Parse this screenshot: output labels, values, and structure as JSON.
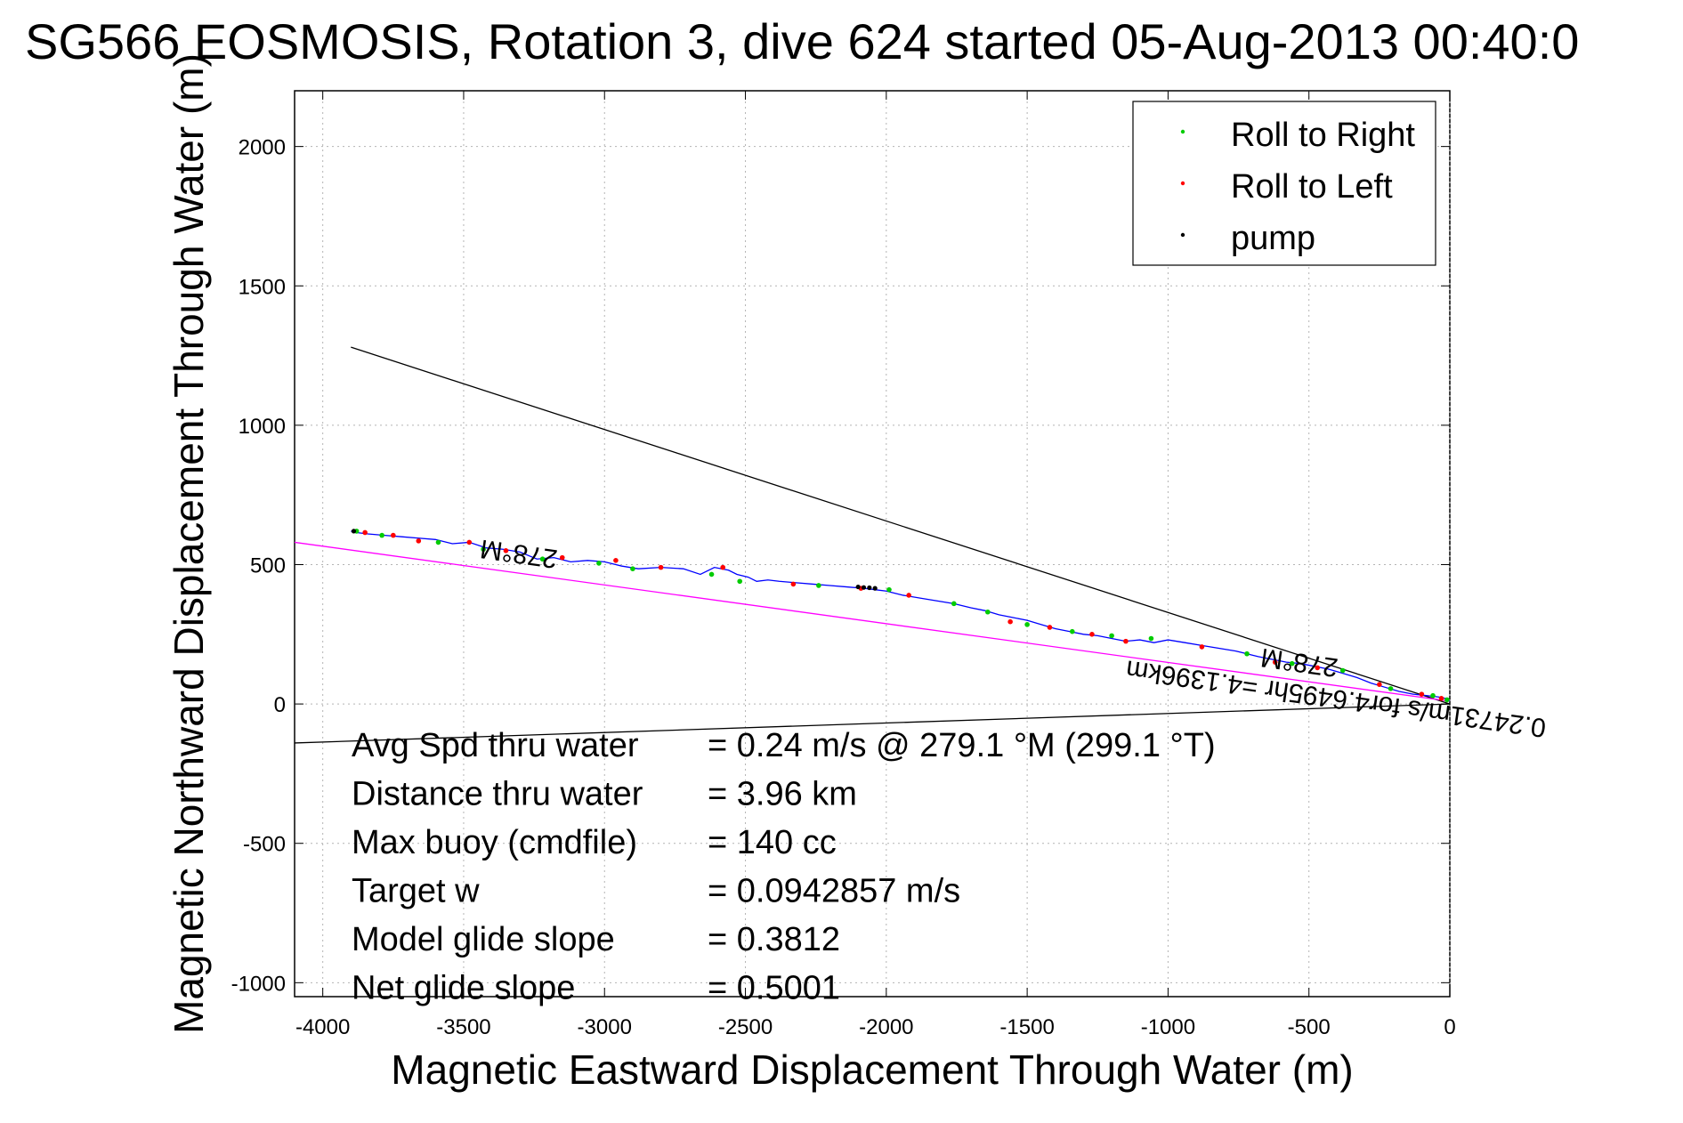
{
  "chart_data": {
    "type": "line",
    "title": "SG566 EOSMOSIS, Rotation 3, dive 624 started 05-Aug-2013 00:40:0",
    "xlabel": "Magnetic Eastward Displacement Through Water (m)",
    "ylabel": "Magnetic Northward Displacement Through Water (m)",
    "xlim": [
      -4100,
      0
    ],
    "ylim": [
      -1050,
      2200
    ],
    "xticks": [
      -4000,
      -3500,
      -3000,
      -2500,
      -2000,
      -1500,
      -1000,
      -500,
      0
    ],
    "yticks": [
      -1000,
      -500,
      0,
      500,
      1000,
      1500,
      2000
    ],
    "grid": true,
    "legend_position": "top-right",
    "legend": [
      {
        "label": "Roll to Right",
        "color": "#00cc00"
      },
      {
        "label": "Roll to Left",
        "color": "#ff0000"
      },
      {
        "label": "pump",
        "color": "#000000"
      }
    ],
    "track": {
      "color": "#0000ff",
      "x": [
        0,
        -15,
        -40,
        -80,
        -130,
        -180,
        -230,
        -280,
        -330,
        -380,
        -430,
        -480,
        -530,
        -580,
        -630,
        -680,
        -720,
        -760,
        -820,
        -880,
        -940,
        -1000,
        -1050,
        -1100,
        -1150,
        -1200,
        -1250,
        -1300,
        -1350,
        -1400,
        -1450,
        -1500,
        -1550,
        -1600,
        -1650,
        -1700,
        -1760,
        -1820,
        -1880,
        -1940,
        -2000,
        -2040,
        -2080,
        -2140,
        -2200,
        -2260,
        -2320,
        -2380,
        -2420,
        -2460,
        -2490,
        -2530,
        -2560,
        -2610,
        -2660,
        -2720,
        -2800,
        -2880,
        -2940,
        -3000,
        -3060,
        -3120,
        -3180,
        -3240,
        -3300,
        -3360,
        -3420,
        -3480,
        -3540,
        -3600,
        -3660,
        -3720,
        -3780,
        -3840,
        -3880,
        -3900
      ],
      "y": [
        10,
        20,
        25,
        30,
        35,
        45,
        60,
        75,
        95,
        110,
        125,
        135,
        145,
        150,
        160,
        170,
        180,
        190,
        200,
        210,
        220,
        230,
        220,
        230,
        225,
        235,
        245,
        250,
        260,
        270,
        285,
        300,
        310,
        320,
        335,
        345,
        360,
        370,
        380,
        390,
        405,
        410,
        415,
        420,
        425,
        430,
        435,
        440,
        445,
        440,
        455,
        465,
        480,
        490,
        465,
        485,
        490,
        485,
        495,
        510,
        515,
        510,
        525,
        520,
        545,
        555,
        560,
        580,
        575,
        590,
        595,
        600,
        605,
        610,
        615,
        620
      ]
    },
    "roll_right_points": {
      "color": "#00cc00",
      "x": [
        -10,
        -60,
        -210,
        -380,
        -560,
        -720,
        -1060,
        -1200,
        -1340,
        -1500,
        -1640,
        -1760,
        -1990,
        -2240,
        -2520,
        -2620,
        -2900,
        -3020,
        -3220,
        -3430,
        -3590,
        -3790,
        -3880
      ],
      "y": [
        15,
        30,
        55,
        120,
        145,
        180,
        235,
        245,
        260,
        285,
        330,
        360,
        410,
        425,
        440,
        465,
        485,
        505,
        520,
        555,
        580,
        605,
        620
      ]
    },
    "roll_left_points": {
      "color": "#ff0000",
      "x": [
        -30,
        -100,
        -250,
        -470,
        -620,
        -880,
        -1150,
        -1270,
        -1420,
        -1560,
        -1920,
        -2090,
        -2330,
        -2580,
        -2800,
        -2960,
        -3150,
        -3350,
        -3480,
        -3660,
        -3750,
        -3850
      ],
      "y": [
        20,
        35,
        70,
        130,
        150,
        205,
        225,
        250,
        275,
        295,
        390,
        415,
        430,
        490,
        490,
        515,
        525,
        550,
        580,
        585,
        605,
        615
      ]
    },
    "pump_points": {
      "color": "#000000",
      "x": [
        -2040,
        -2060,
        -2080,
        -2100,
        -3890
      ],
      "y": [
        415,
        417,
        418,
        420,
        620
      ]
    },
    "heading_line_upper": {
      "color": "#000000",
      "x": [
        0,
        -3900
      ],
      "y": [
        0,
        1280
      ]
    },
    "heading_line_lower": {
      "color": "#000000",
      "x": [
        0,
        -4100
      ],
      "y": [
        0,
        -140
      ]
    },
    "average_line": {
      "color": "#ff00ff",
      "x": [
        0,
        -4100
      ],
      "y": [
        10,
        580
      ]
    },
    "annotations": [
      {
        "text": "278°M",
        "x": -3300,
        "y": 570,
        "rotation_deg": 188
      },
      {
        "text": "278°M",
        "x": -530,
        "y": 180,
        "rotation_deg": 188
      },
      {
        "text": "0.24731m/s for4.6495hr =4.1396km",
        "x": -400,
        "y": 50,
        "rotation_deg": 188
      }
    ],
    "stats": [
      {
        "label": "Avg Spd thru water",
        "value": "=  0.24 m/s @ 279.1 °M (299.1 °T)"
      },
      {
        "label": "Distance thru water",
        "value": "=  3.96 km"
      },
      {
        "label": "Max buoy (cmdfile)",
        "value": "= 140 cc"
      },
      {
        "label": "Target w",
        "value": "= 0.0942857 m/s"
      },
      {
        "label": "Model glide slope",
        "value": "= 0.3812"
      },
      {
        "label": "Net glide slope",
        "value": "= 0.5001"
      }
    ]
  }
}
